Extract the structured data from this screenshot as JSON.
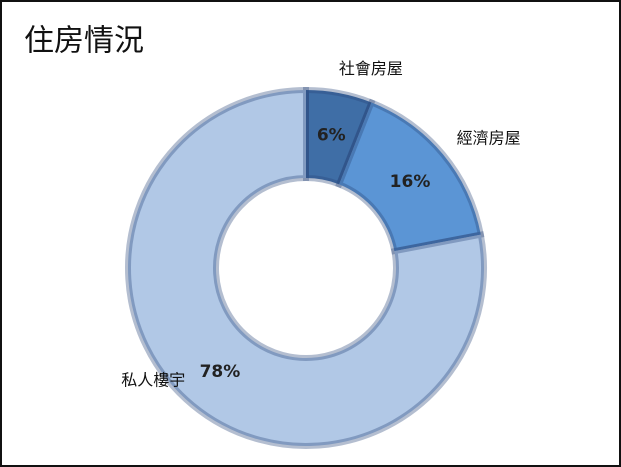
{
  "chart_data": {
    "type": "donut",
    "title": "住房情況",
    "categories": [
      "社會房屋",
      "經濟房屋",
      "私人樓宇"
    ],
    "values": [
      6,
      16,
      78
    ],
    "value_labels": [
      "6%",
      "16%",
      "78%"
    ],
    "colors": [
      "#3f6ea6",
      "#5b95d5",
      "#b1c8e6"
    ]
  }
}
